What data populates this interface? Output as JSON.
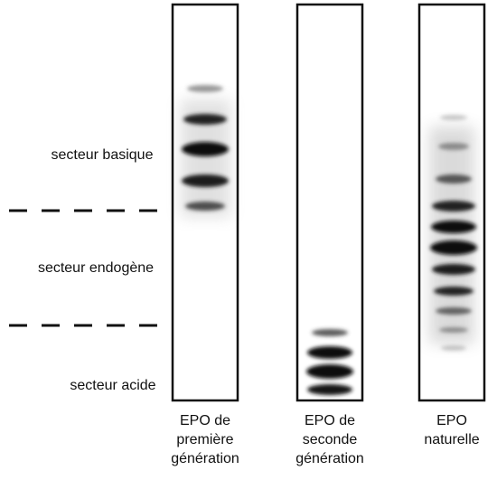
{
  "sectors": [
    {
      "label": "secteur basique"
    },
    {
      "label": "secteur endogène"
    },
    {
      "label": "secteur acide"
    }
  ],
  "lanes": [
    {
      "label_lines": [
        "EPO de",
        "première",
        "génération"
      ]
    },
    {
      "label_lines": [
        "EPO de",
        "seconde",
        "génération"
      ]
    },
    {
      "label_lines": [
        "EPO",
        "naturelle"
      ]
    }
  ]
}
